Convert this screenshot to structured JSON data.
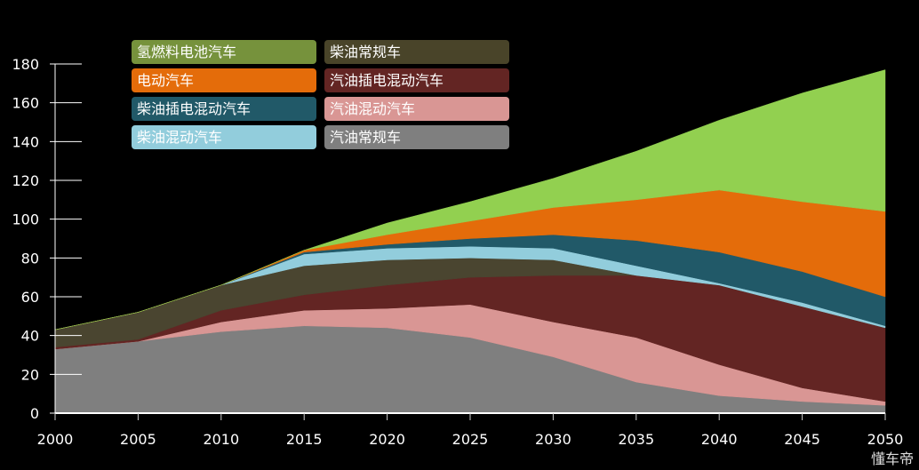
{
  "chart_data": {
    "type": "area",
    "stacked": true,
    "title": "",
    "xlabel": "",
    "ylabel": "",
    "x": [
      2000,
      2005,
      2010,
      2015,
      2020,
      2025,
      2030,
      2035,
      2040,
      2045,
      2050
    ],
    "xlim": [
      2000,
      2050
    ],
    "ylim": [
      0,
      180
    ],
    "x_ticks": [
      "2000",
      "2005",
      "2010",
      "2015",
      "2020",
      "2025",
      "2030",
      "2035",
      "2040",
      "2045",
      "2050"
    ],
    "y_ticks": [
      "0",
      "20",
      "40",
      "60",
      "80",
      "100",
      "120",
      "140",
      "160",
      "180"
    ],
    "grid": false,
    "legend_placement": "top-left",
    "series": [
      {
        "name": "汽油常规车",
        "color": "#7f7f7f",
        "values": [
          33,
          37,
          42,
          45,
          44,
          39,
          29,
          16,
          9,
          6,
          4
        ]
      },
      {
        "name": "汽油混动汽车",
        "color": "#d99694",
        "values": [
          0,
          0,
          5,
          8,
          10,
          17,
          18,
          23,
          16,
          7,
          2
        ]
      },
      {
        "name": "汽油插电混动汽车",
        "color": "#632523",
        "values": [
          1,
          1,
          6,
          8,
          12,
          14,
          24,
          32,
          41,
          42,
          38
        ]
      },
      {
        "name": "柴油常规车",
        "color": "#4a4530",
        "values": [
          9,
          14,
          13,
          15,
          13,
          10,
          8,
          0,
          0,
          0,
          0
        ]
      },
      {
        "name": "柴油混动汽车",
        "color": "#92cddc",
        "values": [
          0,
          0,
          0,
          6,
          6,
          6,
          6,
          5,
          1,
          2,
          1
        ]
      },
      {
        "name": "柴油插电混动汽车",
        "color": "#215968",
        "values": [
          0,
          0,
          0,
          1,
          2,
          4,
          7,
          13,
          16,
          16,
          15
        ]
      },
      {
        "name": "电动汽车",
        "color": "#e46c0a",
        "values": [
          0,
          0,
          0,
          1,
          5,
          9,
          14,
          21,
          32,
          36,
          44
        ]
      },
      {
        "name": "氢燃料电池汽车",
        "color": "#92d050",
        "values": [
          0,
          0,
          0,
          0,
          6,
          10,
          15,
          25,
          36,
          56,
          73
        ]
      }
    ],
    "legend_order": [
      "氢燃料电池汽车",
      "柴油常规车",
      "电动汽车",
      "汽油插电混动汽车",
      "柴油插电混动汽车",
      "汽油混动汽车",
      "柴油混动汽车",
      "汽油常规车"
    ],
    "legend_colors": [
      "#76923c",
      "#494429",
      "#e46c0a",
      "#632523",
      "#215968",
      "#d99694",
      "#92cddc",
      "#7f7f7f"
    ]
  },
  "watermark": "懂车帝"
}
